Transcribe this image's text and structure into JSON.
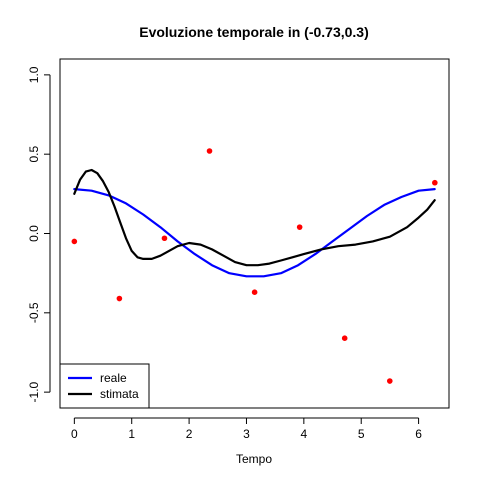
{
  "chart_data": {
    "type": "line",
    "title": "Evoluzione temporale in (-0.73,0.3)",
    "xlabel": "Tempo",
    "ylabel": "",
    "xlim": [
      -0.25,
      6.53
    ],
    "ylim": [
      -1.1,
      1.1
    ],
    "x_ticks": [
      0,
      1,
      2,
      3,
      4,
      5,
      6
    ],
    "y_ticks": [
      -1.0,
      -0.5,
      0.0,
      0.5,
      1.0
    ],
    "y_tick_labels": [
      "-1.0",
      "-0.5",
      "0.0",
      "0.5",
      "1.0"
    ],
    "points": {
      "color": "#ff0000",
      "x": [
        0.0,
        0.785,
        1.571,
        2.356,
        3.142,
        3.927,
        4.712,
        5.498,
        6.283
      ],
      "y": [
        -0.05,
        -0.41,
        -0.03,
        0.52,
        -0.37,
        0.04,
        -0.66,
        -0.93,
        0.32
      ]
    },
    "series": [
      {
        "name": "reale",
        "color": "#0000ff",
        "x": [
          0,
          0.3,
          0.6,
          0.9,
          1.2,
          1.5,
          1.8,
          2.1,
          2.4,
          2.7,
          3.0,
          3.3,
          3.6,
          3.9,
          4.2,
          4.5,
          4.8,
          5.1,
          5.4,
          5.7,
          6.0,
          6.28
        ],
        "y": [
          0.28,
          0.27,
          0.24,
          0.19,
          0.12,
          0.04,
          -0.05,
          -0.13,
          -0.2,
          -0.25,
          -0.27,
          -0.27,
          -0.25,
          -0.2,
          -0.13,
          -0.05,
          0.03,
          0.11,
          0.18,
          0.23,
          0.27,
          0.28
        ]
      },
      {
        "name": "stimata",
        "color": "#000000",
        "x": [
          0,
          0.1,
          0.2,
          0.3,
          0.4,
          0.5,
          0.6,
          0.7,
          0.8,
          0.9,
          1.0,
          1.1,
          1.2,
          1.35,
          1.5,
          1.65,
          1.8,
          2.0,
          2.2,
          2.4,
          2.6,
          2.8,
          3.0,
          3.2,
          3.4,
          3.6,
          3.8,
          4.0,
          4.3,
          4.6,
          4.9,
          5.2,
          5.5,
          5.8,
          6.0,
          6.15,
          6.28
        ],
        "y": [
          0.25,
          0.34,
          0.39,
          0.4,
          0.38,
          0.33,
          0.26,
          0.17,
          0.07,
          -0.03,
          -0.11,
          -0.15,
          -0.16,
          -0.16,
          -0.14,
          -0.11,
          -0.08,
          -0.06,
          -0.07,
          -0.1,
          -0.14,
          -0.18,
          -0.2,
          -0.2,
          -0.19,
          -0.17,
          -0.15,
          -0.13,
          -0.1,
          -0.08,
          -0.07,
          -0.05,
          -0.02,
          0.04,
          0.1,
          0.15,
          0.21
        ]
      }
    ],
    "legend": {
      "position": "bottom-left",
      "entries": [
        "reale",
        "stimata"
      ]
    },
    "grid": false
  }
}
